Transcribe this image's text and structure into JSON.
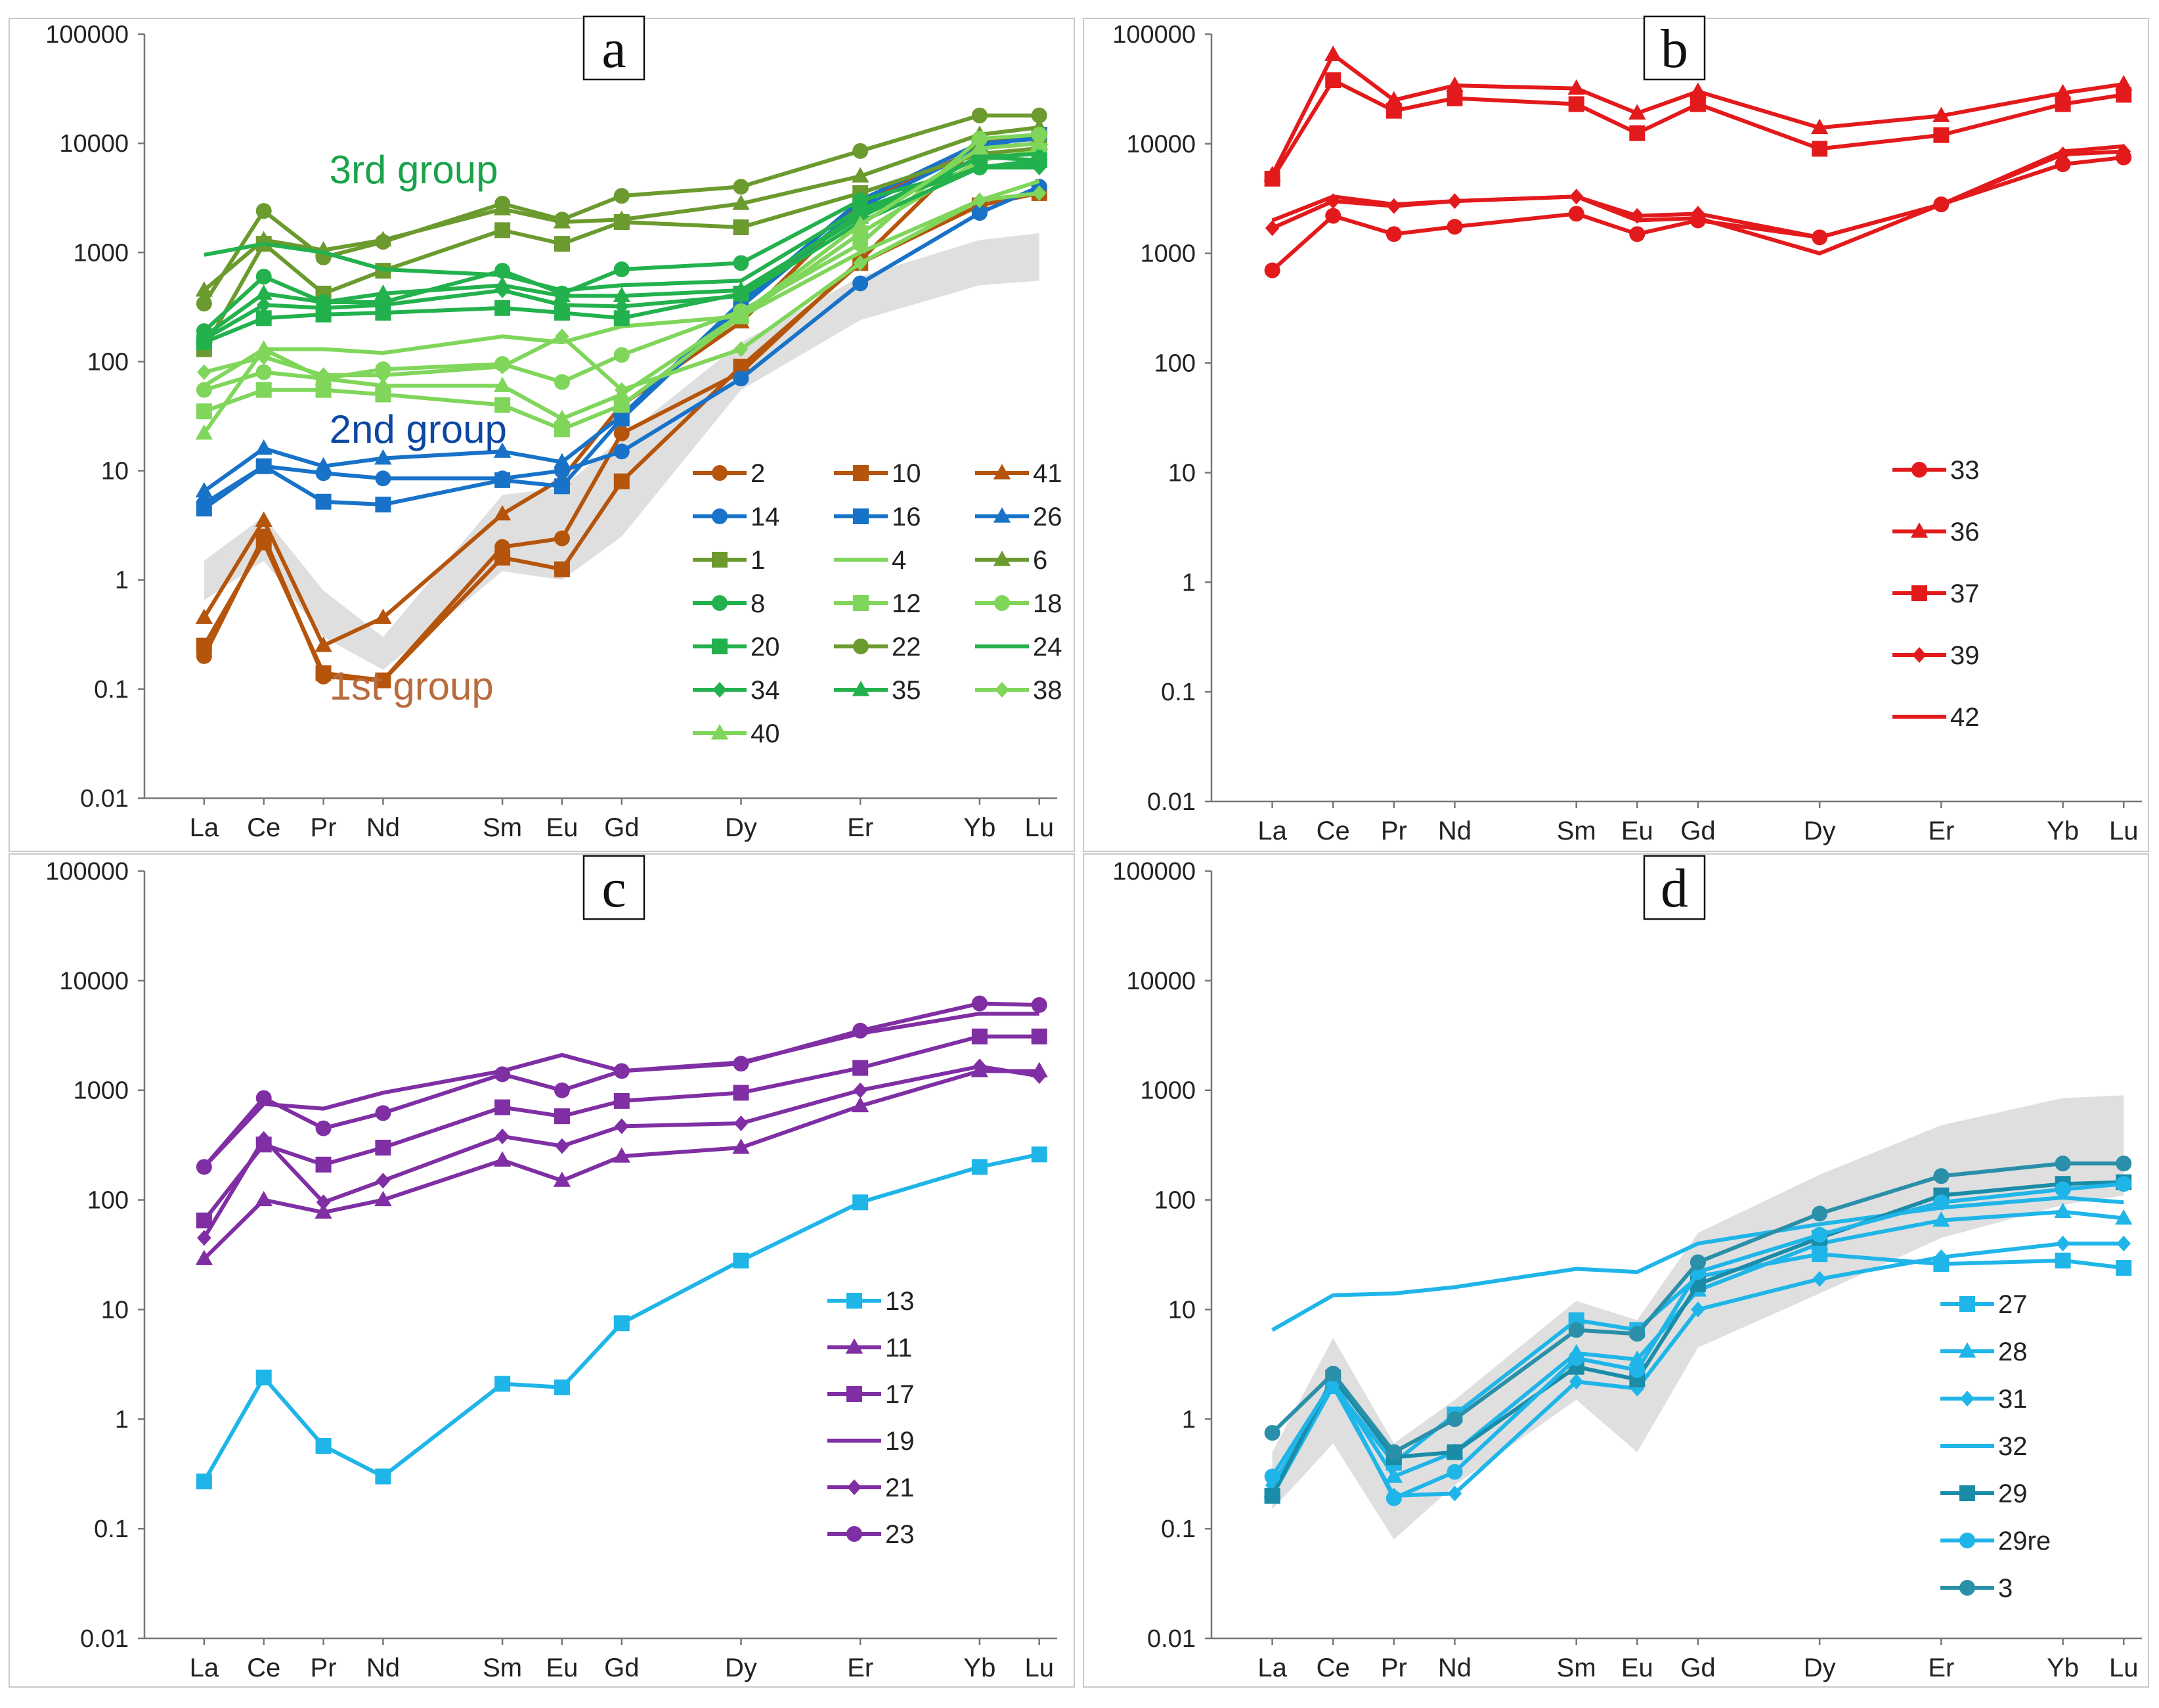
{
  "figure": {
    "x_categories": [
      "La",
      "Ce",
      "Pr",
      "Nd",
      "Sm",
      "Eu",
      "Gd",
      "Dy",
      "Er",
      "Yb",
      "Lu"
    ],
    "x_positions": [
      57,
      58,
      59,
      60,
      62,
      63,
      64,
      66,
      68,
      70,
      71
    ],
    "y_ticks": [
      0.01,
      0.1,
      1,
      10,
      100,
      1000,
      10000,
      100000
    ],
    "y_tick_labels": [
      "0.01",
      "0.1",
      "1",
      "10",
      "100",
      "1000",
      "10000",
      "100000"
    ]
  },
  "chart_data": [
    {
      "panel": "a",
      "type": "line",
      "label": "a",
      "yscale": "log",
      "ylim": [
        0.01,
        100000
      ],
      "categories": [
        "La",
        "Ce",
        "Pr",
        "Nd",
        "Sm",
        "Eu",
        "Gd",
        "Dy",
        "Er",
        "Yb",
        "Lu"
      ],
      "band": {
        "lower": [
          0.65,
          1.5,
          0.3,
          0.15,
          1.2,
          1.0,
          2.5,
          55,
          240,
          500,
          550
        ],
        "upper": [
          1.5,
          3.8,
          0.8,
          0.3,
          6,
          7,
          20,
          150,
          600,
          1300,
          1500
        ]
      },
      "annotations": [
        {
          "text": "3rd group",
          "color": "#1aa34a",
          "anchor_x": 59.1,
          "anchor_y": 4300
        },
        {
          "text": "2nd group",
          "color": "#0d47a1",
          "anchor_x": 59.1,
          "anchor_y": 18
        },
        {
          "text": "1st group",
          "color": "#b86b3d",
          "anchor_x": 59.1,
          "anchor_y": 0.08
        }
      ],
      "series": [
        {
          "name": "2",
          "color": "#b5540b",
          "marker": "circle",
          "values": [
            0.2,
            2.5,
            0.13,
            0.12,
            2.0,
            2.4,
            22,
            80,
            850,
            10000,
            12000
          ]
        },
        {
          "name": "10",
          "color": "#b5540b",
          "marker": "square",
          "values": [
            0.25,
            2.2,
            0.14,
            0.12,
            1.6,
            1.25,
            8,
            90,
            800,
            2700,
            3500
          ]
        },
        {
          "name": "41",
          "color": "#b5540b",
          "marker": "triangle",
          "values": [
            0.45,
            3.5,
            0.25,
            0.45,
            4,
            8.5,
            40,
            230,
            2800,
            9000,
            10000
          ]
        },
        {
          "name": "14",
          "color": "#1872c8",
          "marker": "circle",
          "values": [
            5,
            11,
            9.5,
            8.5,
            8.5,
            10,
            15,
            70,
            520,
            2300,
            4000
          ]
        },
        {
          "name": "16",
          "color": "#1872c8",
          "marker": "square",
          "values": [
            4.5,
            11,
            5.2,
            4.9,
            8.2,
            7.2,
            30,
            320,
            2600,
            9000,
            12000
          ]
        },
        {
          "name": "26",
          "color": "#1872c8",
          "marker": "triangle",
          "values": [
            6.5,
            16,
            11,
            13,
            15,
            12,
            32,
            350,
            3000,
            10000,
            11000
          ]
        },
        {
          "name": "1",
          "color": "#6b9a2e",
          "marker": "square",
          "values": [
            130,
            1200,
            420,
            680,
            1600,
            1200,
            1900,
            1700,
            3500,
            8000,
            9000
          ]
        },
        {
          "name": "4",
          "color": "#7fd65a",
          "marker": "none",
          "values": [
            60,
            130,
            130,
            120,
            170,
            150,
            210,
            260,
            1000,
            3000,
            4500
          ]
        },
        {
          "name": "6",
          "color": "#6b9a2e",
          "marker": "triangle",
          "values": [
            450,
            1300,
            1050,
            1300,
            2500,
            1900,
            2000,
            2800,
            5000,
            12000,
            14000
          ]
        },
        {
          "name": "8",
          "color": "#23b14d",
          "marker": "circle",
          "values": [
            190,
            600,
            350,
            350,
            680,
            420,
            700,
            800,
            3000,
            6000,
            6500
          ]
        },
        {
          "name": "12",
          "color": "#7fd65a",
          "marker": "square",
          "values": [
            35,
            55,
            55,
            50,
            40,
            24,
            40,
            260,
            1500,
            7000,
            8500
          ]
        },
        {
          "name": "18",
          "color": "#7fd65a",
          "marker": "circle",
          "values": [
            55,
            80,
            70,
            85,
            95,
            65,
            115,
            290,
            1200,
            11000,
            12000
          ]
        },
        {
          "name": "20",
          "color": "#23b14d",
          "marker": "square",
          "values": [
            150,
            250,
            270,
            280,
            310,
            280,
            250,
            420,
            2300,
            7500,
            7000
          ]
        },
        {
          "name": "22",
          "color": "#6b9a2e",
          "marker": "circle",
          "values": [
            340,
            2400,
            900,
            1250,
            2800,
            2000,
            3300,
            4000,
            8500,
            18000,
            18000
          ]
        },
        {
          "name": "24",
          "color": "#23b14d",
          "marker": "none",
          "values": [
            950,
            1200,
            1000,
            700,
            620,
            450,
            500,
            550,
            2500,
            6000,
            7000
          ]
        },
        {
          "name": "34",
          "color": "#23b14d",
          "marker": "diamond",
          "values": [
            160,
            330,
            310,
            330,
            450,
            330,
            320,
            400,
            1900,
            6000,
            6000
          ]
        },
        {
          "name": "35",
          "color": "#23b14d",
          "marker": "triangle",
          "values": [
            170,
            420,
            350,
            420,
            500,
            400,
            400,
            450,
            2100,
            7500,
            8000
          ]
        },
        {
          "name": "38",
          "color": "#7fd65a",
          "marker": "diamond",
          "values": [
            80,
            110,
            75,
            75,
            90,
            170,
            55,
            130,
            800,
            3000,
            3500
          ]
        },
        {
          "name": "40",
          "color": "#7fd65a",
          "marker": "triangle",
          "values": [
            22,
            130,
            70,
            60,
            60,
            30,
            50,
            270,
            1800,
            9000,
            10000
          ]
        }
      ]
    },
    {
      "panel": "b",
      "type": "line",
      "label": "b",
      "yscale": "log",
      "ylim": [
        0.01,
        100000
      ],
      "categories": [
        "La",
        "Ce",
        "Pr",
        "Nd",
        "Sm",
        "Eu",
        "Gd",
        "Dy",
        "Er",
        "Yb",
        "Lu"
      ],
      "series": [
        {
          "name": "33",
          "color": "#e31a1c",
          "marker": "circle",
          "values": [
            700,
            2200,
            1500,
            1750,
            2300,
            1500,
            2000,
            1400,
            2800,
            6500,
            7500
          ]
        },
        {
          "name": "36",
          "color": "#e31a1c",
          "marker": "triangle",
          "values": [
            5200,
            65000,
            25000,
            34000,
            32000,
            19000,
            30000,
            14000,
            18000,
            29000,
            35000
          ]
        },
        {
          "name": "37",
          "color": "#e31a1c",
          "marker": "square",
          "values": [
            4800,
            38000,
            20000,
            26000,
            23000,
            12500,
            23000,
            9000,
            12000,
            23000,
            28000
          ]
        },
        {
          "name": "39",
          "color": "#e31a1c",
          "marker": "diamond",
          "values": [
            1700,
            3000,
            2700,
            3000,
            3300,
            2200,
            2300,
            1400,
            2800,
            8000,
            8500
          ]
        },
        {
          "name": "42",
          "color": "#e31a1c",
          "marker": "none",
          "values": [
            2000,
            3300,
            2800,
            3000,
            3300,
            2000,
            2100,
            1000,
            2800,
            8500,
            9500
          ]
        }
      ]
    },
    {
      "panel": "c",
      "type": "line",
      "label": "c",
      "yscale": "log",
      "ylim": [
        0.01,
        100000
      ],
      "categories": [
        "La",
        "Ce",
        "Pr",
        "Nd",
        "Sm",
        "Eu",
        "Gd",
        "Dy",
        "Er",
        "Yb",
        "Lu"
      ],
      "series": [
        {
          "name": "13",
          "color": "#1fb5e8",
          "marker": "square",
          "values": [
            0.27,
            2.4,
            0.57,
            0.3,
            2.1,
            1.95,
            7.5,
            28,
            95,
            200,
            260
          ]
        },
        {
          "name": "11",
          "color": "#7f2fa3",
          "marker": "triangle",
          "values": [
            29,
            100,
            77,
            100,
            230,
            150,
            250,
            300,
            720,
            1500,
            1500
          ]
        },
        {
          "name": "17",
          "color": "#7f2fa3",
          "marker": "square",
          "values": [
            65,
            320,
            210,
            300,
            700,
            580,
            800,
            950,
            1600,
            3100,
            3100
          ]
        },
        {
          "name": "19",
          "color": "#7f2fa3",
          "marker": "none",
          "values": [
            200,
            750,
            680,
            950,
            1500,
            2100,
            1500,
            1800,
            3300,
            5000,
            5000
          ]
        },
        {
          "name": "21",
          "color": "#7f2fa3",
          "marker": "diamond",
          "values": [
            45,
            360,
            95,
            150,
            380,
            310,
            470,
            500,
            1000,
            1650,
            1350
          ]
        },
        {
          "name": "23",
          "color": "#7f2fa3",
          "marker": "circle",
          "values": [
            200,
            850,
            450,
            620,
            1400,
            1000,
            1500,
            1750,
            3500,
            6200,
            6000
          ]
        }
      ]
    },
    {
      "panel": "d",
      "type": "line",
      "label": "d",
      "yscale": "log",
      "ylim": [
        0.01,
        100000
      ],
      "categories": [
        "La",
        "Ce",
        "Pr",
        "Nd",
        "Sm",
        "Eu",
        "Gd",
        "Dy",
        "Er",
        "Yb",
        "Lu"
      ],
      "band": {
        "lower": [
          0.15,
          0.6,
          0.08,
          0.25,
          1.5,
          0.5,
          4.5,
          14,
          45,
          90,
          110
        ],
        "upper": [
          0.5,
          5.5,
          0.6,
          1.5,
          12,
          8,
          50,
          170,
          480,
          850,
          900
        ]
      },
      "series": [
        {
          "name": "27",
          "color": "#1fb5e8",
          "marker": "square",
          "values": [
            0.2,
            2.0,
            0.4,
            1.1,
            8,
            6.5,
            20,
            32,
            26,
            28,
            24
          ]
        },
        {
          "name": "28",
          "color": "#1fb5e8",
          "marker": "triangle",
          "values": [
            0.22,
            2.2,
            0.3,
            0.5,
            4,
            3.5,
            15,
            40,
            65,
            78,
            68
          ]
        },
        {
          "name": "31",
          "color": "#1fb5e8",
          "marker": "diamond",
          "values": [
            0.25,
            2.0,
            0.2,
            0.21,
            2.2,
            1.9,
            10,
            19,
            30,
            40,
            40
          ]
        },
        {
          "name": "32",
          "color": "#1fb5e8",
          "marker": "none",
          "values": [
            6.5,
            13.5,
            14,
            16,
            23.5,
            22,
            40,
            60,
            85,
            105,
            95
          ]
        },
        {
          "name": "29",
          "color": "#1a8ca8",
          "marker": "square",
          "values": [
            0.2,
            2.4,
            0.45,
            0.5,
            3,
            2.3,
            17,
            45,
            110,
            140,
            145
          ]
        },
        {
          "name": "29re",
          "color": "#1fb5e8",
          "marker": "circle",
          "values": [
            0.3,
            2.2,
            0.19,
            0.33,
            3.6,
            2.8,
            22,
            48,
            95,
            125,
            140
          ]
        },
        {
          "name": "3",
          "color": "#2a8fa8",
          "marker": "circle",
          "values": [
            0.75,
            2.6,
            0.5,
            1.0,
            6.5,
            6,
            27,
            75,
            165,
            215,
            215
          ]
        }
      ]
    }
  ]
}
